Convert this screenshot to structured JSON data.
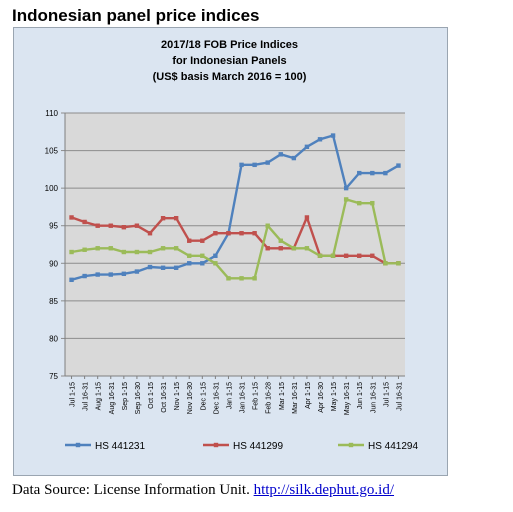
{
  "page": {
    "heading": "Indonesian panel price indices",
    "source_text": "Data Source: License Information Unit.",
    "source_link": "http://silk.dephut.go.id/"
  },
  "chart_data": {
    "type": "line",
    "title_lines": [
      "2017/18 FOB Price Indices",
      "for Indonesian Panels",
      "(US$ basis March 2016 = 100)"
    ],
    "xlabel": "",
    "ylabel": "",
    "ylim": [
      75,
      110
    ],
    "yticks": [
      75,
      80,
      85,
      90,
      95,
      100,
      105,
      110
    ],
    "grid": true,
    "legend_position": "bottom",
    "categories": [
      "Jul 1-15",
      "Jul 16-31",
      "Aug 1-15",
      "Aug 16-31",
      "Sep 1-15",
      "Sep 16-30",
      "Oct 1-15",
      "Oct 16-31",
      "Nov 1-15",
      "Nov 16-30",
      "Dec 1-15",
      "Dec 16-31",
      "Jan 1-15",
      "Jan 16-31",
      "Feb 1-15",
      "Feb 16-28",
      "Mar 1-15",
      "Mar 16-31",
      "Apr 1-15",
      "Apr 16-30",
      "May 1-15",
      "May 16-31",
      "Jun 1-15",
      "Jun 16-31",
      "Jul 1-15",
      "Jul 16-31"
    ],
    "series": [
      {
        "name": "HS 441231",
        "color": "#4f81bd",
        "values": [
          87.8,
          88.3,
          88.5,
          88.5,
          88.6,
          88.9,
          89.5,
          89.4,
          89.4,
          90.0,
          90.0,
          91.0,
          94.0,
          103.1,
          103.1,
          103.4,
          104.5,
          104.0,
          105.5,
          106.5,
          107.0,
          100.0,
          102.0,
          102.0,
          102.0,
          103.0
        ]
      },
      {
        "name": "HS 441299",
        "color": "#c0504d",
        "values": [
          96.1,
          95.5,
          95.0,
          95.0,
          94.8,
          95.0,
          94.0,
          96.0,
          96.0,
          93.0,
          93.0,
          94.0,
          94.0,
          94.0,
          94.0,
          92.0,
          92.0,
          92.0,
          96.1,
          91.0,
          91.0,
          91.0,
          91.0,
          91.0,
          90.0,
          90.0
        ]
      },
      {
        "name": "HS 441294",
        "color": "#9bbb59",
        "values": [
          91.5,
          91.8,
          92.0,
          92.0,
          91.5,
          91.5,
          91.5,
          92.0,
          92.0,
          91.0,
          91.0,
          90.0,
          88.0,
          88.0,
          88.0,
          95.0,
          93.0,
          92.0,
          92.0,
          91.0,
          91.0,
          98.5,
          98.0,
          98.0,
          90.0,
          90.0
        ]
      }
    ]
  }
}
